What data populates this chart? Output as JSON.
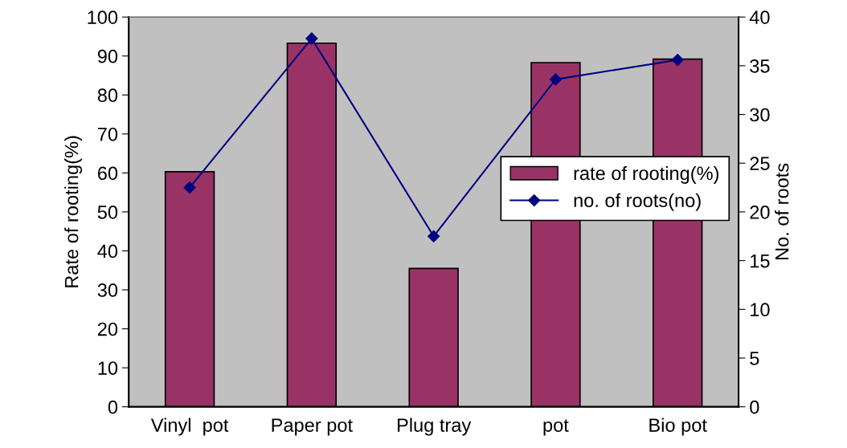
{
  "chart_data": {
    "type": "bar",
    "ylabel": "Rate of rooting(%)",
    "y2label": "No. of roots",
    "categories": [
      "Vinyl  pot",
      "Paper pot",
      "Plug tray",
      "pot",
      "Bio pot"
    ],
    "series": [
      {
        "name": "rate of rooting(%)",
        "color": "#993366",
        "values": [
          60.3,
          93.3,
          35.5,
          88.3,
          89.2
        ]
      },
      {
        "name": "no. of roots(no)",
        "type": "line",
        "axis": "y2",
        "color": "#000080",
        "marker": "diamond",
        "values": [
          22.5,
          37.8,
          17.5,
          33.6,
          35.6
        ]
      }
    ],
    "ylim": [
      0,
      100
    ],
    "yticks": [
      0,
      10,
      20,
      30,
      40,
      50,
      60,
      70,
      80,
      90,
      100
    ],
    "y2lim": [
      0,
      40
    ],
    "y2ticks": [
      0,
      5,
      10,
      15,
      20,
      25,
      30,
      35,
      40
    ],
    "grid": false,
    "legend": "center right"
  }
}
